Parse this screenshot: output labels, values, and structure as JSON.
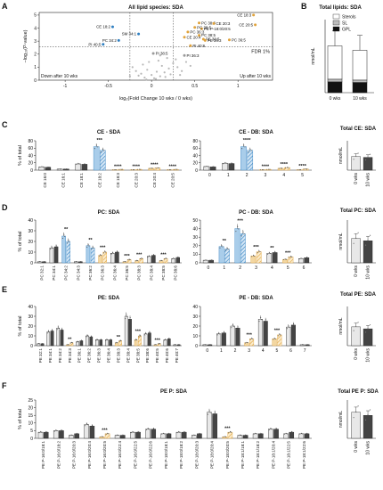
{
  "figure": {
    "title": "All lipid species: SDA",
    "panel_letters": [
      "A",
      "B",
      "C",
      "D",
      "E",
      "F"
    ],
    "colors": {
      "w0": "#e8e8e8",
      "w10": "#444444",
      "down": "#2f7fc1",
      "down_fill": "#a9cdea",
      "up": "#e0a33c",
      "up_fill": "#f3d7a1",
      "grey_pt": "#b8b8b8"
    }
  },
  "chart_data": [
    {
      "id": "A",
      "type": "scatter",
      "title": "All lipid species: SDA",
      "xlabel": "log₂(Fold Change 10 wks / 0 wks)",
      "ylabel": "−log₁₀(P-value)",
      "xlim": [
        -1.3,
        1.4
      ],
      "ylim": [
        0,
        5.2
      ],
      "xticks": [
        -1.0,
        -0.5,
        0.0,
        0.5,
        1.0
      ],
      "yticks": [
        0,
        1,
        2,
        3,
        4,
        5
      ],
      "threshold_label": "FDR 1%",
      "down_label": "Down after 10 wks",
      "up_label": "Up after 10 wks",
      "labeled_points": [
        {
          "label": "CE 18:3",
          "x": 1.18,
          "y": 5.0,
          "group": "up"
        },
        {
          "label": "CE 20:5",
          "x": 1.2,
          "y": 4.25,
          "group": "up"
        },
        {
          "label": "CE 18:2",
          "x": -0.45,
          "y": 4.1,
          "group": "down"
        },
        {
          "label": "PE P-18:0/20:5",
          "x": 0.58,
          "y": 3.95,
          "group": "up"
        },
        {
          "label": "PC 38:5",
          "x": 0.5,
          "y": 4.05,
          "group": "up"
        },
        {
          "label": "PC 38:3",
          "x": 0.55,
          "y": 4.4,
          "group": "up"
        },
        {
          "label": "CE 20:3",
          "x": 0.72,
          "y": 4.35,
          "group": "up"
        },
        {
          "label": "SM 34:1",
          "x": -0.15,
          "y": 3.55,
          "group": "down"
        },
        {
          "label": "PC 36:3",
          "x": 0.42,
          "y": 3.7,
          "group": "up"
        },
        {
          "label": "PC 38:5",
          "x": 0.55,
          "y": 3.45,
          "group": "up"
        },
        {
          "label": "CE 20:4",
          "x": 0.38,
          "y": 3.3,
          "group": "up"
        },
        {
          "label": "PE 38:5",
          "x": 0.6,
          "y": 3.15,
          "group": "up"
        },
        {
          "label": "PE 34:3",
          "x": 0.62,
          "y": 3.05,
          "group": "up"
        },
        {
          "label": "PC 36:5",
          "x": 0.9,
          "y": 3.1,
          "group": "up"
        },
        {
          "label": "PC 34:2",
          "x": -0.38,
          "y": 3.05,
          "group": "down"
        },
        {
          "label": "PI 40:5",
          "x": -0.56,
          "y": 2.75,
          "group": "down"
        },
        {
          "label": "PI 40:6",
          "x": 0.45,
          "y": 2.65,
          "group": "up"
        },
        {
          "label": "PI 38:5",
          "x": 0.02,
          "y": 2.05,
          "group": "grey"
        },
        {
          "label": "PI 36:3",
          "x": 0.38,
          "y": 1.9,
          "group": "grey"
        }
      ],
      "background_points": [
        [
          0.05,
          0.1
        ],
        [
          0.1,
          0.3
        ],
        [
          -0.08,
          0.2
        ],
        [
          0.15,
          0.6
        ],
        [
          -0.12,
          0.5
        ],
        [
          0.2,
          0.9
        ],
        [
          0.0,
          0.4
        ],
        [
          -0.05,
          0.8
        ],
        [
          0.12,
          1.1
        ],
        [
          -0.18,
          0.7
        ],
        [
          0.25,
          1.3
        ],
        [
          0.08,
          1.5
        ],
        [
          -0.1,
          1.2
        ],
        [
          0.3,
          1.0
        ],
        [
          0.18,
          1.7
        ],
        [
          -0.22,
          1.0
        ],
        [
          0.03,
          0.15
        ],
        [
          0.22,
          0.45
        ],
        [
          -0.15,
          0.35
        ],
        [
          0.35,
          0.7
        ],
        [
          0.28,
          1.6
        ],
        [
          -0.03,
          1.4
        ],
        [
          0.1,
          1.9
        ],
        [
          0.4,
          1.4
        ],
        [
          -0.25,
          0.3
        ],
        [
          0.06,
          0.65
        ],
        [
          0.16,
          0.25
        ],
        [
          -0.06,
          0.05
        ],
        [
          0.45,
          1.1
        ],
        [
          0.33,
          0.4
        ]
      ]
    },
    {
      "id": "B",
      "type": "bar",
      "title": "Total lipids: SDA",
      "categories": [
        "0 wks",
        "10 wks"
      ],
      "ylabel": "nmol/mL",
      "ylim": [
        0,
        25000
      ],
      "legend": [
        "Sterols",
        "SL",
        "GPL"
      ],
      "series": [
        {
          "name": "GPL",
          "values": [
            3700,
            3500
          ]
        },
        {
          "name": "SL",
          "values": [
            900,
            800
          ]
        },
        {
          "name": "Sterols",
          "values": [
            11400,
            10200
          ]
        }
      ],
      "error": [
        5200,
        5100
      ]
    },
    {
      "id": "C1",
      "type": "bar",
      "title": "CE - SDA",
      "ylabel": "% of total",
      "ylim": [
        0,
        80
      ],
      "yticks": [
        0,
        20,
        40,
        60,
        80
      ],
      "categories": [
        "CE 16:0",
        "CE 16:1",
        "CE 18:1",
        "CE 18:2",
        "CE 18:3",
        "CE 20:3",
        "CE 20:4",
        "CE 20:5"
      ],
      "series": [
        {
          "name": "0 wks",
          "values": [
            9,
            3,
            17,
            64,
            1,
            1,
            5,
            1
          ]
        },
        {
          "name": "10 wks",
          "values": [
            8,
            3,
            16,
            54,
            2,
            2,
            6,
            2
          ]
        }
      ],
      "status": [
        "none",
        "none",
        "none",
        "down",
        "up",
        "up",
        "up",
        "up"
      ],
      "stars": [
        "",
        "",
        "",
        "***",
        "****",
        "****",
        "****",
        "****"
      ]
    },
    {
      "id": "C2",
      "type": "bar",
      "title": "CE - DB: SDA",
      "ylabel": "",
      "ylim": [
        0,
        80
      ],
      "yticks": [
        0,
        20,
        40,
        60,
        80
      ],
      "categories": [
        "0",
        "1",
        "2",
        "3",
        "4",
        "5"
      ],
      "series": [
        {
          "name": "0 wks",
          "values": [
            10,
            19,
            64,
            1,
            5,
            1
          ]
        },
        {
          "name": "10 wks",
          "values": [
            9,
            18,
            54,
            2,
            7,
            3
          ]
        }
      ],
      "status": [
        "none",
        "none",
        "down",
        "up",
        "up",
        "up"
      ],
      "stars": [
        "",
        "",
        "****",
        "****",
        "****",
        "****"
      ]
    },
    {
      "id": "C3",
      "type": "bar",
      "title": "Total CE: SDA",
      "ylabel": "nmol/mL",
      "ylim": [
        0,
        20000
      ],
      "categories": [
        "0 wks",
        "10 wks"
      ],
      "series": [
        {
          "name": "Total",
          "values": [
            9300,
            8700
          ]
        }
      ]
    },
    {
      "id": "D1",
      "type": "bar",
      "title": "PC: SDA",
      "ylabel": "% of total",
      "ylim": [
        0,
        40
      ],
      "yticks": [
        0,
        10,
        20,
        30,
        40
      ],
      "categories": [
        "PC 32:1",
        "PC 34:1",
        "PC 34:2",
        "PC 34:3",
        "PC 36:2",
        "PC 36:3",
        "PC 36:4",
        "PC 36:5",
        "PC 38:3",
        "PC 38:4",
        "PC 38:5",
        "PC 38:6"
      ],
      "series": [
        {
          "name": "0 wks",
          "values": [
            1,
            14,
            25,
            1,
            16,
            7,
            9,
            1,
            2,
            6,
            2,
            4
          ]
        },
        {
          "name": "10 wks",
          "values": [
            1,
            15,
            20,
            1,
            14,
            10,
            10,
            3,
            4,
            7,
            4,
            5
          ]
        }
      ],
      "status": [
        "none",
        "none",
        "down",
        "none",
        "down",
        "up",
        "none",
        "up",
        "up",
        "none",
        "up",
        "none"
      ],
      "stars": [
        "",
        "",
        "**",
        "",
        "**",
        "***",
        "",
        "***",
        "***",
        "",
        "***",
        ""
      ]
    },
    {
      "id": "D2",
      "type": "bar",
      "title": "PC - DB: SDA",
      "ylabel": "",
      "ylim": [
        0,
        50
      ],
      "yticks": [
        0,
        10,
        20,
        30,
        40,
        50
      ],
      "categories": [
        "0",
        "1",
        "2",
        "3",
        "4",
        "5",
        "6"
      ],
      "series": [
        {
          "name": "0 wks",
          "values": [
            3,
            19,
            40,
            8,
            11,
            4,
            5
          ]
        },
        {
          "name": "10 wks",
          "values": [
            3,
            16,
            34,
            13,
            12,
            7,
            6
          ]
        }
      ],
      "status": [
        "none",
        "down",
        "down",
        "up",
        "none",
        "up",
        "none"
      ],
      "stars": [
        "",
        "**",
        "***",
        "***",
        "**",
        "***",
        ""
      ]
    },
    {
      "id": "D3",
      "type": "bar",
      "title": "Total PC: SDA",
      "ylabel": "nmol/mL",
      "ylim": [
        0,
        6000
      ],
      "categories": [
        "0 wks",
        "10 wks"
      ],
      "series": [
        {
          "name": "Total",
          "values": [
            3400,
            3100
          ]
        }
      ]
    },
    {
      "id": "E1",
      "type": "bar",
      "title": "PE: SDA",
      "ylabel": "% of total",
      "ylim": [
        0,
        40
      ],
      "yticks": [
        0,
        10,
        20,
        30,
        40
      ],
      "categories": [
        "PE 32:1",
        "PE 34:1",
        "PE 34:2",
        "PE 34:3",
        "PE 36:1",
        "PE 36:2",
        "PE 36:3",
        "PE 36:4",
        "PE 38:3",
        "PE 38:4",
        "PE 38:5",
        "PE 38:6",
        "PE 40:5",
        "PE 40:6",
        "PE 40:7"
      ],
      "series": [
        {
          "name": "0 wks",
          "values": [
            2,
            14,
            18,
            1,
            4,
            10,
            6,
            6,
            3,
            30,
            6,
            12,
            1,
            6,
            1
          ]
        },
        {
          "name": "10 wks",
          "values": [
            2,
            15,
            16,
            3,
            5,
            9,
            6,
            6,
            5,
            27,
            10,
            13,
            2,
            7,
            1
          ]
        }
      ],
      "status": [
        "none",
        "none",
        "none",
        "up",
        "none",
        "none",
        "none",
        "none",
        "up",
        "none",
        "up",
        "none",
        "up",
        "none",
        "none"
      ],
      "stars": [
        "",
        "",
        "",
        "**",
        "",
        "",
        "",
        "",
        "**",
        "",
        "***",
        "",
        "***",
        "",
        ""
      ]
    },
    {
      "id": "E2",
      "type": "bar",
      "title": "PE - DB: SDA",
      "ylabel": "",
      "ylim": [
        0,
        40
      ],
      "yticks": [
        0,
        10,
        20,
        30,
        40
      ],
      "categories": [
        "0",
        "1",
        "2",
        "3",
        "4",
        "5",
        "6",
        "7"
      ],
      "series": [
        {
          "name": "0 wks",
          "values": [
            1,
            12,
            20,
            3,
            27,
            7,
            19,
            1
          ]
        },
        {
          "name": "10 wks",
          "values": [
            1,
            13,
            18,
            7,
            25,
            11,
            21,
            1
          ]
        }
      ],
      "status": [
        "none",
        "none",
        "none",
        "up",
        "none",
        "up",
        "none",
        "none"
      ],
      "stars": [
        "",
        "",
        "",
        "***",
        "",
        "***",
        "",
        ""
      ]
    },
    {
      "id": "E3",
      "type": "bar",
      "title": "Total PE: SDA",
      "ylabel": "nmol/mL",
      "ylim": [
        0,
        100
      ],
      "categories": [
        "0 wks",
        "10 wks"
      ],
      "series": [
        {
          "name": "Total",
          "values": [
            48,
            43
          ]
        }
      ]
    },
    {
      "id": "F1",
      "type": "bar",
      "title": "PE P: SDA",
      "ylabel": "% of total",
      "ylim": [
        0,
        25
      ],
      "yticks": [
        0,
        5,
        10,
        15,
        20,
        25
      ],
      "categories": [
        "PE P-16:0/18:1",
        "PE P-16:0/18:2",
        "PE P-16:0/20:3",
        "PE P-16:0/20:4",
        "PE P-16:0/20:5",
        "PE P-16:0/22:4",
        "PE P-16:0/22:5",
        "PE P-16:0/22:6",
        "PE P-18:0/18:1",
        "PE P-18:0/18:2",
        "PE P-18:0/20:3",
        "PE P-18:0/20:4",
        "PE P-18:0/20:5",
        "PE P-18:1/18:1",
        "PE P-18:1/18:2",
        "PE P-18:1/20:4",
        "PE P-18:1/22:5",
        "PE P-18:1/22:6"
      ],
      "series": [
        {
          "name": "0 wks",
          "values": [
            4,
            5,
            2,
            9,
            1,
            2,
            4,
            6,
            3,
            4,
            2,
            17,
            1,
            2,
            3,
            6,
            3,
            3
          ]
        },
        {
          "name": "10 wks",
          "values": [
            4,
            5,
            3,
            8,
            3,
            2,
            4,
            6,
            3,
            4,
            3,
            16,
            4,
            2,
            3,
            6,
            4,
            3
          ]
        }
      ],
      "status": [
        "none",
        "none",
        "none",
        "none",
        "up",
        "none",
        "none",
        "none",
        "none",
        "none",
        "none",
        "none",
        "up",
        "none",
        "none",
        "none",
        "none",
        "none"
      ],
      "stars": [
        "",
        "",
        "",
        "",
        "***",
        "",
        "",
        "",
        "",
        "",
        "",
        "",
        "***",
        "",
        "",
        "",
        "",
        ""
      ]
    },
    {
      "id": "F2",
      "type": "bar",
      "title": "Total PE P: SDA",
      "ylabel": "nmol/mL",
      "ylim": [
        0,
        100
      ],
      "categories": [
        "0 wks",
        "10 wks"
      ],
      "series": [
        {
          "name": "Total",
          "values": [
            68,
            60
          ]
        }
      ]
    }
  ]
}
